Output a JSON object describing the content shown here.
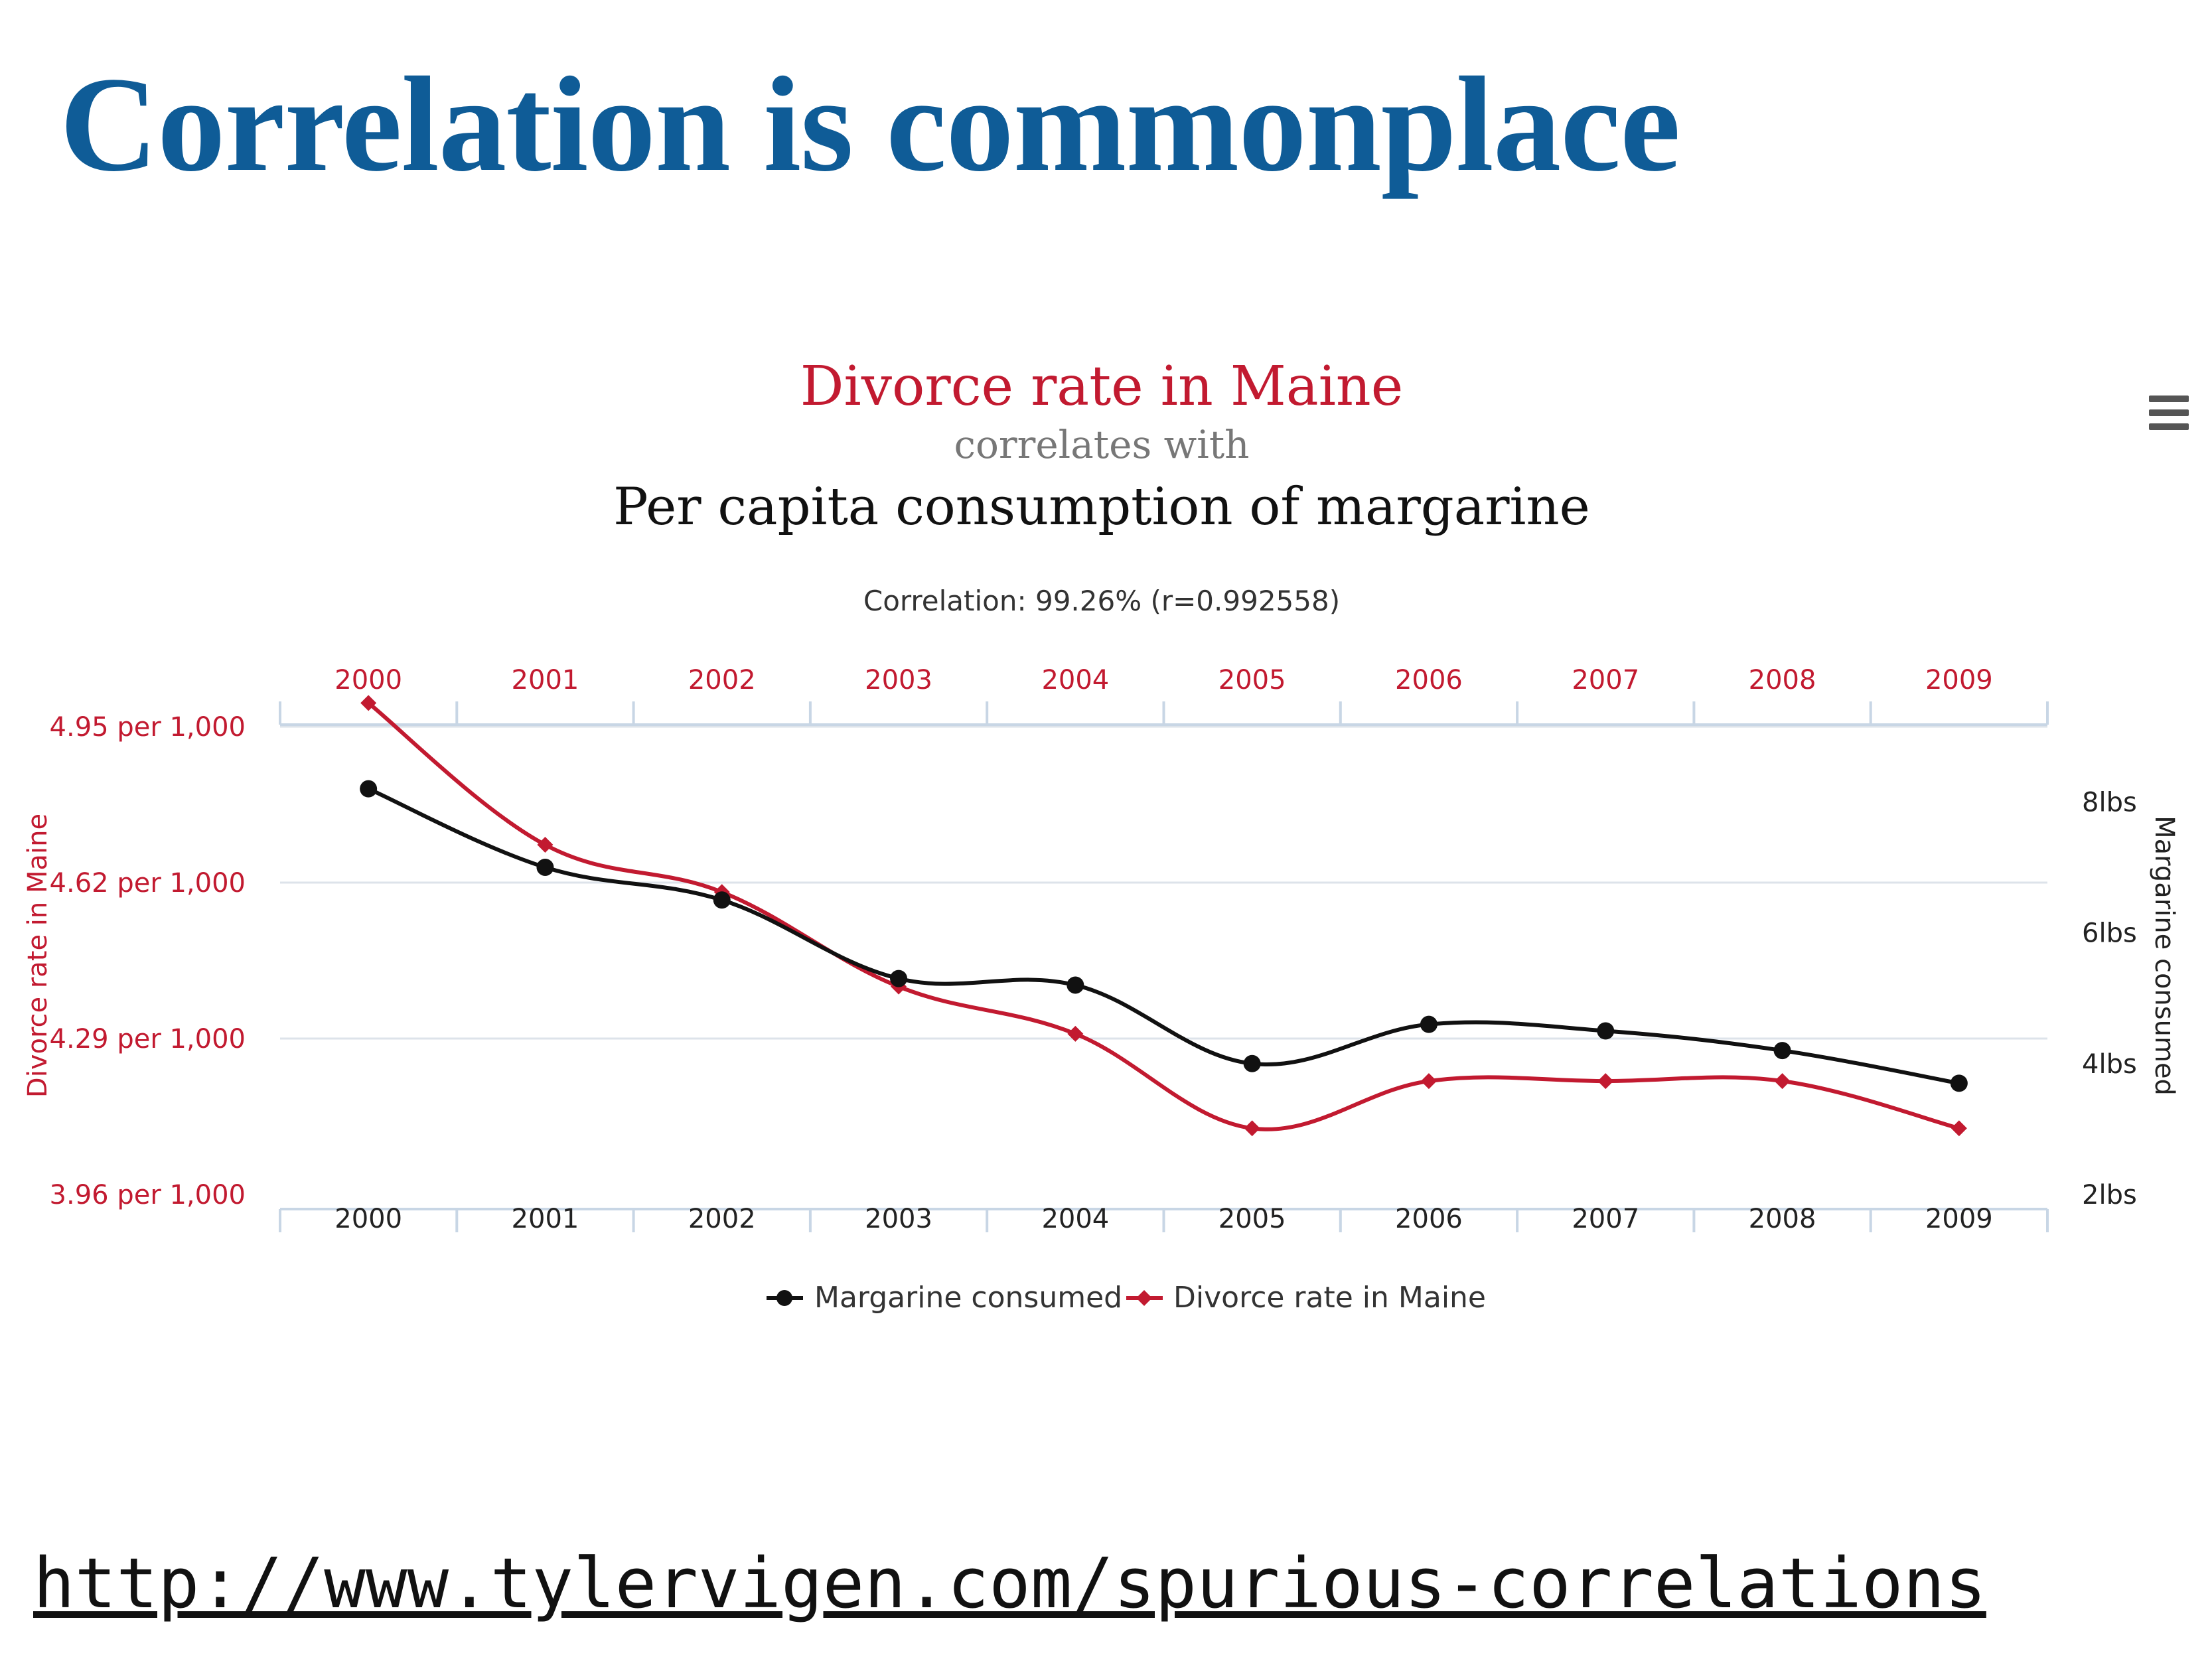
{
  "slide": {
    "title": "Correlation is commonplace",
    "source_url": "http://www.tylervigen.com/spurious-correlations"
  },
  "chart_data": {
    "type": "line",
    "title": "Divorce rate in Maine",
    "subtitle_connector": "correlates with",
    "subtitle": "Per capita consumption of margarine",
    "correlation_text": "Correlation: 99.26% (r=0.992558)",
    "x": [
      2000,
      2001,
      2002,
      2003,
      2004,
      2005,
      2006,
      2007,
      2008,
      2009
    ],
    "x_labels": [
      "2000",
      "2001",
      "2002",
      "2003",
      "2004",
      "2005",
      "2006",
      "2007",
      "2008",
      "2009"
    ],
    "left_axis": {
      "label": "Divorce rate in Maine",
      "range": [
        3.96,
        4.95
      ],
      "ticks": [
        3.96,
        4.29,
        4.62,
        4.95
      ],
      "tick_labels": [
        "3.96 per 1,000",
        "4.29 per 1,000",
        "4.62 per 1,000",
        "4.95 per 1,000"
      ]
    },
    "right_axis": {
      "label": "Margarine consumed",
      "range": [
        2,
        9.15
      ],
      "ticks": [
        2,
        4,
        6,
        8
      ],
      "tick_labels": [
        "2lbs",
        "4lbs",
        "6lbs",
        "8lbs"
      ]
    },
    "series": [
      {
        "name": "Margarine consumed",
        "axis": "right",
        "color": "#111111",
        "marker": "circle",
        "values": [
          8.2,
          7.0,
          6.5,
          5.3,
          5.2,
          4.0,
          4.6,
          4.5,
          4.2,
          3.7
        ]
      },
      {
        "name": "Divorce rate in Maine",
        "axis": "left",
        "color": "#c21a30",
        "marker": "diamond",
        "values": [
          5.0,
          4.7,
          4.6,
          4.4,
          4.3,
          4.1,
          4.2,
          4.2,
          4.2,
          4.1
        ]
      }
    ],
    "legend_position": "bottom-center",
    "grid": true,
    "colors": {
      "title_red": "#c21a30",
      "connector_gray": "#777777",
      "axis_blue": "#c8d6e5",
      "grid": "#dde3ea"
    },
    "menu_icon": "hamburger-menu-icon"
  }
}
